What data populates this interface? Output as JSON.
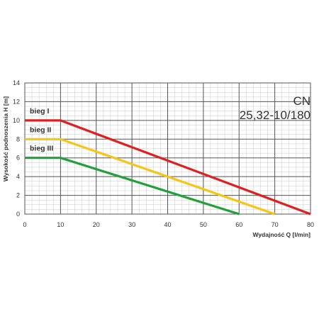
{
  "chart_data": {
    "type": "line",
    "title": "CN",
    "subtitle": "25,32-10/180",
    "xlabel": "Wydajność Q [l/min]",
    "ylabel": "Wysokość podnoszenia H [m]",
    "xlim": [
      0,
      80
    ],
    "ylim": [
      0,
      14
    ],
    "x_ticks": [
      "0",
      "10",
      "20",
      "30",
      "40",
      "50",
      "60",
      "70",
      "80"
    ],
    "y_ticks": [
      "0",
      "2",
      "4",
      "6",
      "8",
      "10",
      "12",
      "14"
    ],
    "grid": true,
    "series": [
      {
        "name": "bieg I",
        "color": "#e02020",
        "x": [
          0,
          10,
          80
        ],
        "y": [
          10,
          10,
          0
        ]
      },
      {
        "name": "bieg II",
        "color": "#f5c518",
        "x": [
          0,
          10,
          70
        ],
        "y": [
          8,
          8,
          0
        ]
      },
      {
        "name": "bieg III",
        "color": "#22a03a",
        "x": [
          0,
          10,
          60
        ],
        "y": [
          6,
          6,
          0
        ]
      }
    ]
  }
}
